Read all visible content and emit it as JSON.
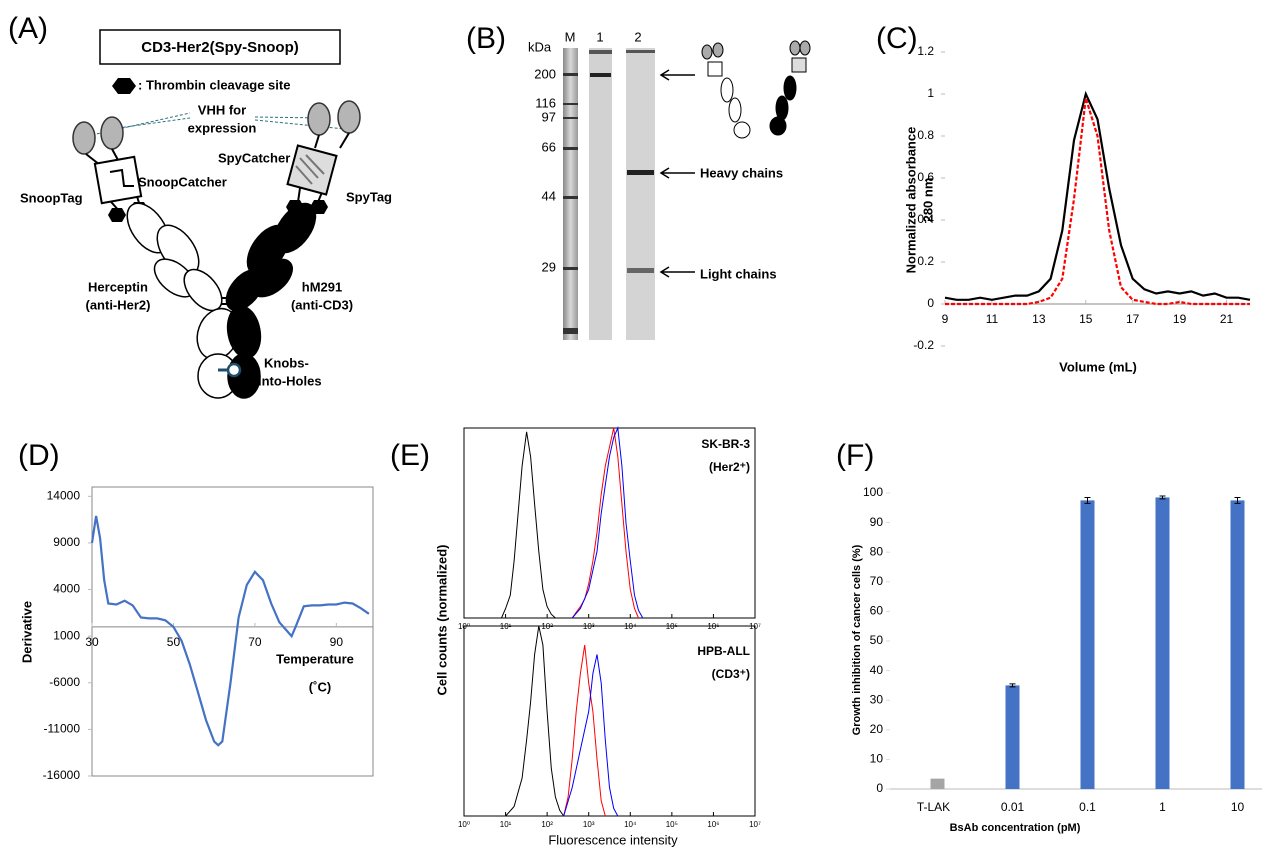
{
  "panel_labels": [
    "(A)",
    "(B)",
    "(C)",
    "(D)",
    "(E)",
    "(F)"
  ],
  "diagram": {
    "title": "CD3-Her2(Spy-Snoop)",
    "legend": ": Thrombin cleavage site",
    "vhh": [
      "VHH for",
      "expression"
    ],
    "spycatcher": "SpyCatcher",
    "snoopcatcher": "SnoopCatcher",
    "snooptag": "SnoopTag",
    "spytag": "SpyTag",
    "herceptin": [
      "Herceptin",
      "(anti-Her2)"
    ],
    "hm291": [
      "hM291",
      "(anti-CD3)"
    ],
    "kih": [
      "Knobs-",
      "into-Holes"
    ]
  },
  "gel": {
    "unit": "kDa",
    "lanes": [
      "M",
      "1",
      "2"
    ],
    "markers": [
      200,
      116,
      97,
      66,
      44,
      29
    ],
    "annotations": [
      "Heavy chains",
      "Light chains"
    ]
  },
  "chart_data": [
    {
      "type": "line",
      "xlabel": "Volume (mL)",
      "ylabel": [
        "Normalized absorbance",
        "280 nm"
      ],
      "xlim": [
        9,
        22
      ],
      "xticks": [
        9,
        11,
        13,
        15,
        17,
        19,
        21
      ],
      "ylim": [
        -0.2,
        1.2
      ],
      "yticks": [
        -0.2,
        0,
        0.2,
        0.4,
        0.6,
        0.8,
        1,
        1.2
      ],
      "series": [
        {
          "color": "#000000",
          "x": [
            9,
            9.5,
            10,
            10.5,
            11,
            11.5,
            12,
            12.5,
            13,
            13.5,
            14,
            14.5,
            15,
            15.5,
            16,
            16.5,
            17,
            17.5,
            18,
            18.5,
            19,
            19.5,
            20,
            20.5,
            21,
            21.5,
            22
          ],
          "values": [
            0.03,
            0.02,
            0.02,
            0.03,
            0.02,
            0.03,
            0.04,
            0.04,
            0.06,
            0.12,
            0.35,
            0.78,
            1,
            0.88,
            0.55,
            0.28,
            0.12,
            0.07,
            0.05,
            0.06,
            0.05,
            0.06,
            0.04,
            0.05,
            0.03,
            0.03,
            0.02
          ]
        },
        {
          "color": "#ff0000",
          "dashed": true,
          "x": [
            9,
            9.5,
            10,
            10.5,
            11,
            11.5,
            12,
            12.5,
            13,
            13.5,
            14,
            14.5,
            15,
            15.5,
            16,
            16.5,
            17,
            17.5,
            18,
            18.5,
            19,
            19.5,
            20,
            20.5,
            21,
            21.5,
            22
          ],
          "values": [
            0,
            0,
            0,
            0,
            0,
            0,
            0,
            0,
            0.01,
            0.03,
            0.12,
            0.5,
            0.98,
            0.8,
            0.35,
            0.08,
            0.02,
            0.01,
            0,
            0,
            0.01,
            0,
            0,
            0,
            0,
            0,
            0
          ]
        }
      ]
    },
    {
      "type": "line",
      "ylabel": "Derivative",
      "xlabel": [
        "Temperature",
        "(˚C)"
      ],
      "frame": true,
      "xlim": [
        30,
        99
      ],
      "xticks": [
        30,
        50,
        70,
        90
      ],
      "ylim": [
        -16000,
        15000
      ],
      "yticks": [
        14000,
        9000,
        4000,
        {
          "value": -1000,
          "label": "1000"
        },
        -6000,
        -11000,
        -16000
      ],
      "series": [
        {
          "color": "#4472c4",
          "x": [
            30,
            31,
            32,
            33,
            34,
            36,
            38,
            40,
            42,
            44,
            46,
            48,
            50,
            52,
            54,
            56,
            58,
            60,
            61,
            62,
            64,
            66,
            68,
            70,
            72,
            74,
            76,
            78,
            79,
            80,
            82,
            84,
            86,
            88,
            90,
            92,
            94,
            96,
            98
          ],
          "values": [
            9000,
            11900,
            9500,
            5000,
            2500,
            2400,
            2800,
            2300,
            1000,
            900,
            900,
            700,
            0,
            -1500,
            -4000,
            -7000,
            -10000,
            -12300,
            -12700,
            -12300,
            -6000,
            1000,
            4500,
            5900,
            5000,
            2500,
            500,
            -500,
            -1000,
            0,
            2200,
            2300,
            2300,
            2400,
            2400,
            2600,
            2500,
            2000,
            1400
          ]
        }
      ]
    },
    {
      "type": "line",
      "log_x": true,
      "frame": true,
      "annotation": [
        "SK-BR-3",
        "(Her2⁺)"
      ],
      "ylabel": "Cell counts (normalized)",
      "xlim": [
        1,
        10000000
      ],
      "ylim": [
        0,
        1
      ],
      "xticks": [
        {
          "value": 1,
          "label": "10⁰"
        },
        {
          "value": 10,
          "label": "10¹"
        },
        {
          "value": 100,
          "label": "10²"
        },
        {
          "value": 1000,
          "label": "10³"
        },
        {
          "value": 10000,
          "label": "10⁴"
        },
        {
          "value": 100000,
          "label": "10⁵"
        },
        {
          "value": 1000000,
          "label": "10⁶"
        },
        {
          "value": 10000000,
          "label": "10⁷"
        }
      ],
      "series": [
        {
          "color": "#000000",
          "x": [
            8,
            10,
            13,
            16,
            20,
            25,
            32,
            40,
            50,
            63,
            79,
            100,
            126,
            158
          ],
          "values": [
            0,
            0.05,
            0.12,
            0.3,
            0.55,
            0.8,
            0.98,
            0.85,
            0.6,
            0.35,
            0.15,
            0.06,
            0.02,
            0
          ]
        },
        {
          "color": "#ff0000",
          "x": [
            400,
            500,
            630,
            800,
            1000,
            1260,
            1580,
            2000,
            2500,
            3160,
            4000,
            5000,
            6300,
            7900,
            10000,
            12600,
            15800
          ],
          "values": [
            0,
            0.03,
            0.06,
            0.1,
            0.18,
            0.3,
            0.45,
            0.65,
            0.8,
            0.9,
            1,
            0.85,
            0.6,
            0.35,
            0.15,
            0.05,
            0
          ]
        },
        {
          "color": "#0000ff",
          "x": [
            400,
            630,
            1000,
            1580,
            2000,
            2500,
            3160,
            4000,
            5000,
            6300,
            7900,
            10000,
            12600,
            15800,
            20000
          ],
          "values": [
            0,
            0.05,
            0.15,
            0.35,
            0.55,
            0.7,
            0.85,
            0.95,
            1,
            0.8,
            0.5,
            0.3,
            0.12,
            0.04,
            0
          ]
        }
      ]
    },
    {
      "type": "line",
      "log_x": true,
      "frame": true,
      "annotation": [
        "HPB-ALL",
        "(CD3⁺)"
      ],
      "xlabel": "Fluorescence intensity",
      "xlim": [
        1,
        10000000
      ],
      "ylim": [
        0,
        1
      ],
      "xticks": [
        {
          "value": 1,
          "label": "10⁰"
        },
        {
          "value": 10,
          "label": "10¹"
        },
        {
          "value": 100,
          "label": "10²"
        },
        {
          "value": 1000,
          "label": "10³"
        },
        {
          "value": 10000,
          "label": "10⁴"
        },
        {
          "value": 100000,
          "label": "10⁵"
        },
        {
          "value": 1000000,
          "label": "10⁶"
        },
        {
          "value": 10000000,
          "label": "10⁷"
        }
      ],
      "series": [
        {
          "color": "#000000",
          "x": [
            10,
            16,
            25,
            32,
            40,
            50,
            63,
            79,
            100,
            126,
            158,
            200,
            250
          ],
          "values": [
            0,
            0.05,
            0.2,
            0.4,
            0.6,
            0.85,
            1,
            0.9,
            0.55,
            0.25,
            0.1,
            0.03,
            0
          ]
        },
        {
          "color": "#ff0000",
          "x": [
            250,
            320,
            400,
            500,
            630,
            800,
            1000,
            1260,
            1580,
            2000,
            2500
          ],
          "values": [
            0,
            0.1,
            0.3,
            0.55,
            0.75,
            0.9,
            0.7,
            0.55,
            0.3,
            0.08,
            0
          ]
        },
        {
          "color": "#0000ff",
          "x": [
            250,
            400,
            630,
            1000,
            1260,
            1580,
            2000,
            2500,
            3160,
            4000,
            5000
          ],
          "values": [
            0,
            0.15,
            0.35,
            0.55,
            0.75,
            0.85,
            0.7,
            0.4,
            0.15,
            0.04,
            0
          ]
        }
      ]
    },
    {
      "type": "bar",
      "xlabel": "BsAb concentration (pM)",
      "ylabel": "Growth inhibition of cancer cells (%)",
      "categories": [
        "T-LAK",
        "0.01",
        "0.1",
        "1",
        "10"
      ],
      "values": [
        3.5,
        35,
        97.5,
        98.5,
        97.5
      ],
      "errors": [
        0,
        0.5,
        1,
        0.5,
        1
      ],
      "colors": [
        "#a5a5a5",
        "#4472c4",
        "#4472c4",
        "#4472c4",
        "#4472c4"
      ],
      "ylim": [
        0,
        100
      ],
      "yticks": [
        0,
        10,
        20,
        30,
        40,
        50,
        60,
        70,
        80,
        90,
        100
      ]
    }
  ]
}
